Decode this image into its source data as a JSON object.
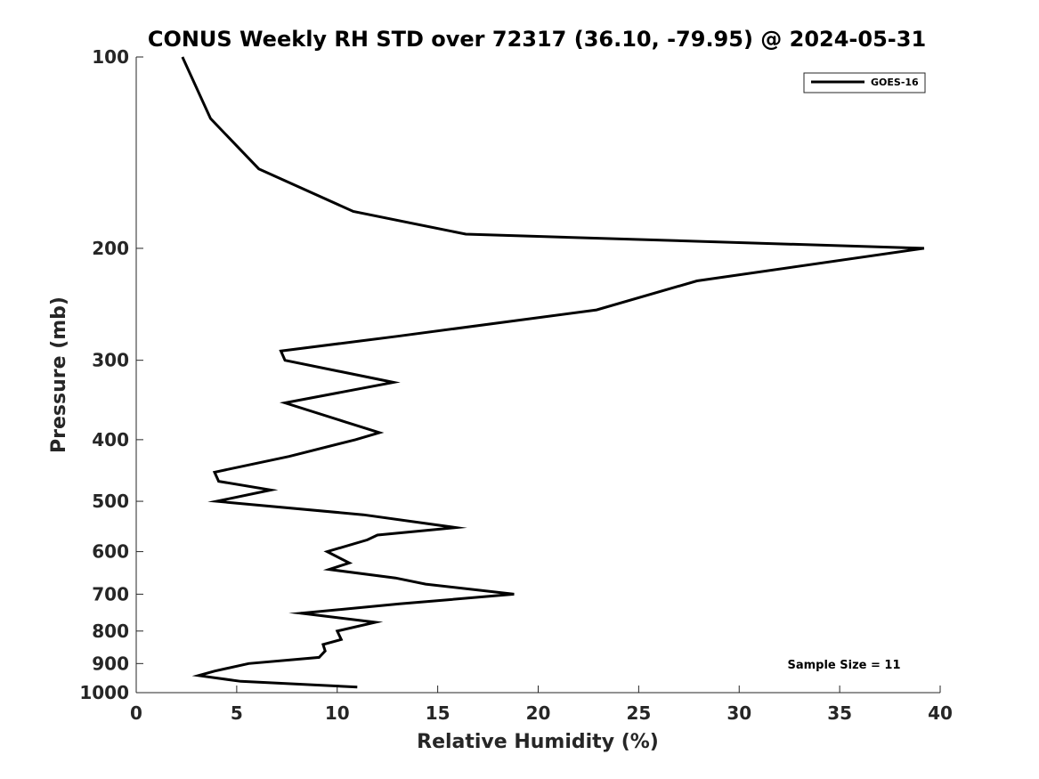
{
  "chart_data": {
    "type": "line",
    "title": "CONUS Weekly RH STD over 72317 (36.10, -79.95) @ 2024-05-31",
    "xlabel": "Relative Humidity (%)",
    "ylabel": "Pressure (mb)",
    "xlim": [
      0,
      40
    ],
    "ylim": [
      100,
      1000
    ],
    "y_scale": "log",
    "y_reversed": true,
    "x_ticks": [
      "0",
      "5",
      "10",
      "15",
      "20",
      "25",
      "30",
      "35",
      "40"
    ],
    "y_ticks": [
      "100",
      "200",
      "300",
      "400",
      "500",
      "600",
      "700",
      "800",
      "900",
      "1000"
    ],
    "grid": false,
    "legend_position": "top-right",
    "series": [
      {
        "name": "GOES-16",
        "color": "#000000",
        "points": [
          [
            2.3,
            100
          ],
          [
            3.7,
            125
          ],
          [
            6.1,
            150
          ],
          [
            10.8,
            175
          ],
          [
            16.4,
            190
          ],
          [
            39.2,
            200
          ],
          [
            27.9,
            225
          ],
          [
            22.9,
            250
          ],
          [
            13.0,
            275
          ],
          [
            7.2,
            290
          ],
          [
            7.4,
            300
          ],
          [
            12.8,
            325
          ],
          [
            7.4,
            350
          ],
          [
            10.4,
            375
          ],
          [
            12.1,
            390
          ],
          [
            10.9,
            400
          ],
          [
            7.6,
            425
          ],
          [
            3.9,
            450
          ],
          [
            4.1,
            465
          ],
          [
            6.7,
            480
          ],
          [
            4.0,
            500
          ],
          [
            11.3,
            525
          ],
          [
            15.9,
            550
          ],
          [
            12.0,
            565
          ],
          [
            11.5,
            575
          ],
          [
            9.5,
            600
          ],
          [
            10.6,
            625
          ],
          [
            9.6,
            640
          ],
          [
            12.9,
            660
          ],
          [
            14.4,
            675
          ],
          [
            18.8,
            700
          ],
          [
            13.1,
            725
          ],
          [
            8.2,
            750
          ],
          [
            11.9,
            775
          ],
          [
            10.0,
            800
          ],
          [
            10.2,
            825
          ],
          [
            9.3,
            840
          ],
          [
            9.4,
            860
          ],
          [
            9.1,
            880
          ],
          [
            5.6,
            900
          ],
          [
            3.9,
            925
          ],
          [
            3.1,
            940
          ],
          [
            5.2,
            960
          ],
          [
            11.0,
            980
          ]
        ]
      }
    ],
    "annotation": "Sample Size = 11"
  }
}
